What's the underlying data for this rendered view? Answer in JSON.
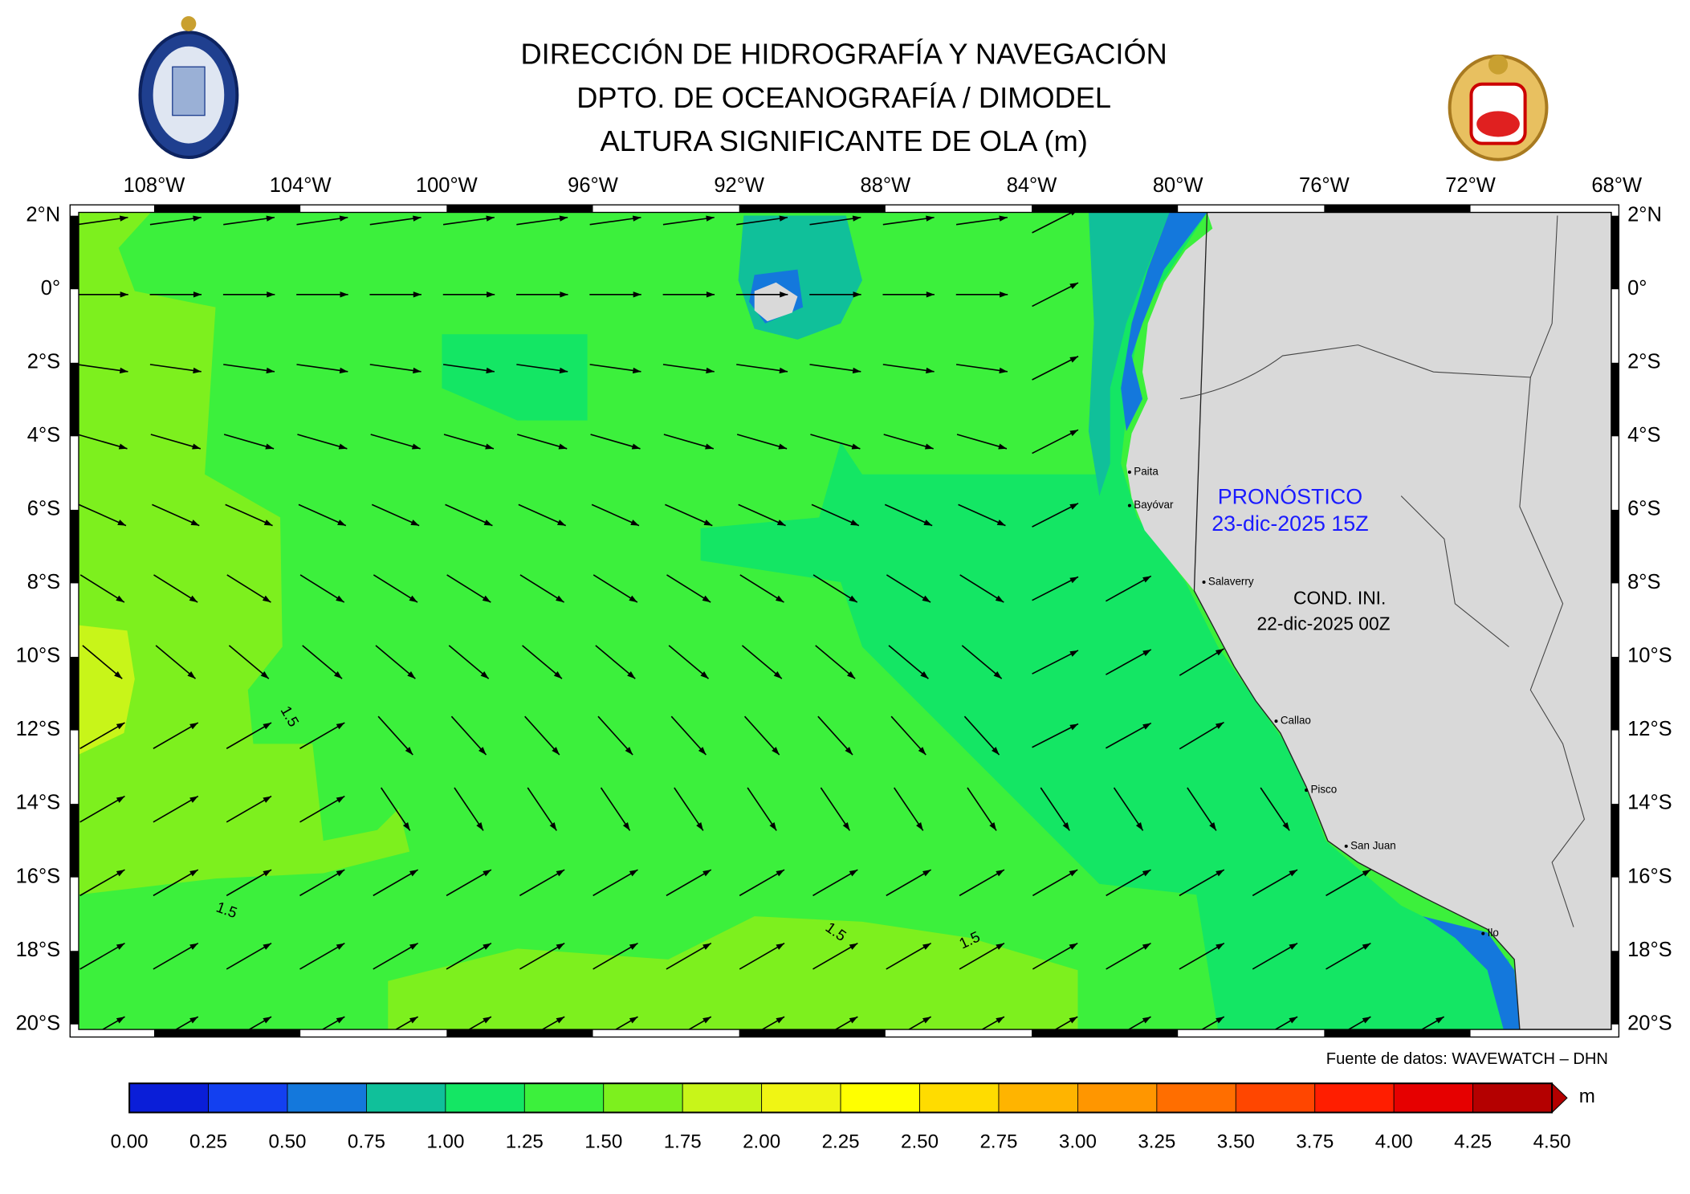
{
  "header": {
    "title_lines": [
      "DIRECCIÓN DE HIDROGRAFÍA Y NAVEGACIÓN",
      "DPTO. DE OCEANOGRAFÍA / DIMODEL",
      "ALTURA SIGNIFICANTE DE OLA (m)"
    ]
  },
  "map": {
    "lon_labels": [
      "108°W",
      "104°W",
      "100°W",
      "96°W",
      "92°W",
      "88°W",
      "84°W",
      "80°W",
      "76°W",
      "72°W",
      "68°W"
    ],
    "lat_labels": [
      "2°N",
      "0°",
      "2°S",
      "4°S",
      "6°S",
      "8°S",
      "10°S",
      "12°S",
      "14°S",
      "16°S",
      "18°S",
      "20°S"
    ],
    "places": [
      "Paita",
      "Bayóvar",
      "Salaverry",
      "Callao",
      "Pisco",
      "San Juan",
      "Ilo"
    ],
    "contour_labels": [
      "1.5",
      "1.5",
      "1.5",
      "1.5"
    ],
    "forecast": {
      "label": "PRONÓSTICO",
      "time": "23-dic-2025 15Z"
    },
    "initial": {
      "label": "COND. INI.",
      "time": "22-dic-2025 00Z"
    },
    "source": "Fuente de datos: WAVEWATCH – DHN"
  },
  "colorbar": {
    "colors": [
      "#0a1ed8",
      "#1340f0",
      "#1478dc",
      "#10c09a",
      "#14e664",
      "#3cf03c",
      "#7df01e",
      "#c8f519",
      "#f0f514",
      "#ffff00",
      "#ffdc00",
      "#ffb400",
      "#ff9600",
      "#ff6e00",
      "#ff4600",
      "#ff1e00",
      "#e60000",
      "#b40000"
    ],
    "tick_labels": [
      "0.00",
      "0.25",
      "0.50",
      "0.75",
      "1.00",
      "1.25",
      "1.50",
      "1.75",
      "2.00",
      "2.25",
      "2.50",
      "2.75",
      "3.00",
      "3.25",
      "3.50",
      "3.75",
      "4.00",
      "4.25",
      "4.50"
    ],
    "unit": "m"
  }
}
